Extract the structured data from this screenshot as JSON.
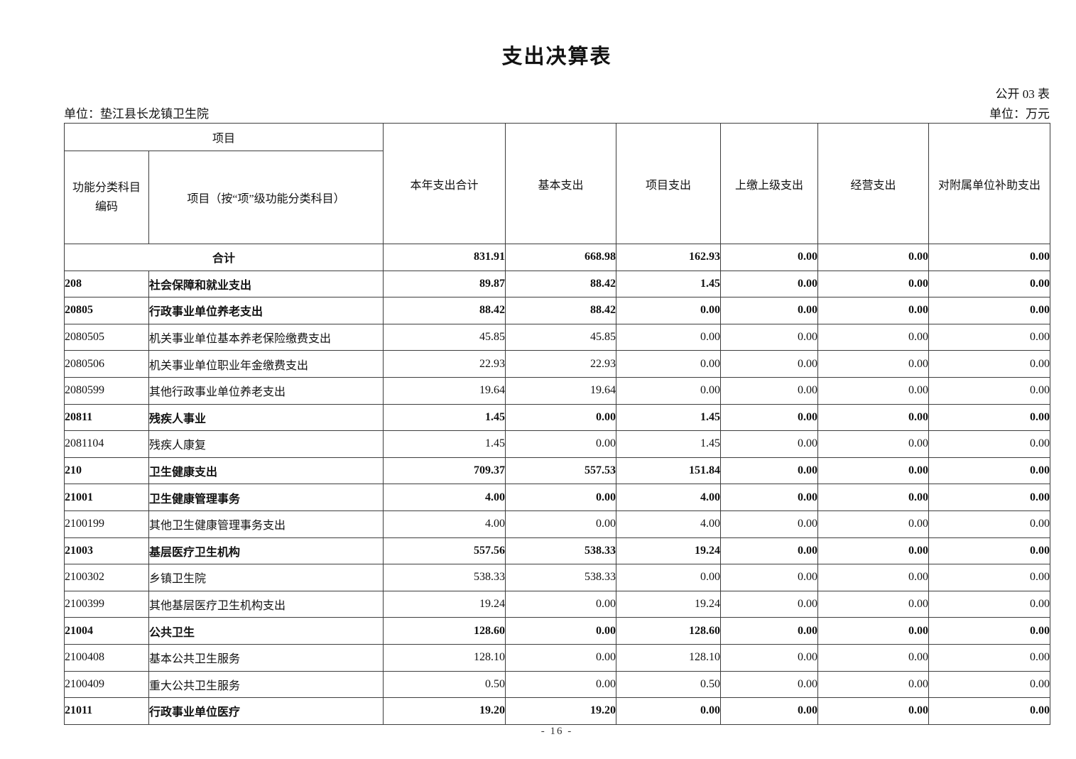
{
  "page": {
    "title": "支出决算表",
    "table_code": "公开 03 表",
    "unit_label": "单位：垫江县长龙镇卫生院",
    "currency_label": "单位：万元",
    "page_number": "- 16 -"
  },
  "table": {
    "header": {
      "project_group": "项目",
      "col_code": "功能分类科目\n编码",
      "col_name": "项目（按“项”级功能分类科目）",
      "col_total": "本年支出合计",
      "col_basic": "基本支出",
      "col_project": "项目支出",
      "col_upper": "上缴上级支出",
      "col_operating": "经营支出",
      "col_subsidy": "对附属单位补助支出"
    },
    "rows": [
      {
        "type": "total",
        "code": "",
        "name": "合计",
        "bold": true,
        "values": [
          "831.91",
          "668.98",
          "162.93",
          "0.00",
          "0.00",
          "0.00"
        ]
      },
      {
        "code": "208",
        "name": "社会保障和就业支出",
        "bold": true,
        "values": [
          "89.87",
          "88.42",
          "1.45",
          "0.00",
          "0.00",
          "0.00"
        ]
      },
      {
        "code": "20805",
        "name": "行政事业单位养老支出",
        "bold": true,
        "values": [
          "88.42",
          "88.42",
          "0.00",
          "0.00",
          "0.00",
          "0.00"
        ]
      },
      {
        "code": "2080505",
        "name": "机关事业单位基本养老保险缴费支出",
        "bold": false,
        "values": [
          "45.85",
          "45.85",
          "0.00",
          "0.00",
          "0.00",
          "0.00"
        ]
      },
      {
        "code": "2080506",
        "name": "机关事业单位职业年金缴费支出",
        "bold": false,
        "values": [
          "22.93",
          "22.93",
          "0.00",
          "0.00",
          "0.00",
          "0.00"
        ]
      },
      {
        "code": "2080599",
        "name": "其他行政事业单位养老支出",
        "bold": false,
        "values": [
          "19.64",
          "19.64",
          "0.00",
          "0.00",
          "0.00",
          "0.00"
        ]
      },
      {
        "code": "20811",
        "name": "残疾人事业",
        "bold": true,
        "values": [
          "1.45",
          "0.00",
          "1.45",
          "0.00",
          "0.00",
          "0.00"
        ]
      },
      {
        "code": "2081104",
        "name": "残疾人康复",
        "bold": false,
        "values": [
          "1.45",
          "0.00",
          "1.45",
          "0.00",
          "0.00",
          "0.00"
        ]
      },
      {
        "code": "210",
        "name": "卫生健康支出",
        "bold": true,
        "values": [
          "709.37",
          "557.53",
          "151.84",
          "0.00",
          "0.00",
          "0.00"
        ]
      },
      {
        "code": "21001",
        "name": "卫生健康管理事务",
        "bold": true,
        "values": [
          "4.00",
          "0.00",
          "4.00",
          "0.00",
          "0.00",
          "0.00"
        ]
      },
      {
        "code": "2100199",
        "name": "其他卫生健康管理事务支出",
        "bold": false,
        "values": [
          "4.00",
          "0.00",
          "4.00",
          "0.00",
          "0.00",
          "0.00"
        ]
      },
      {
        "code": "21003",
        "name": "基层医疗卫生机构",
        "bold": true,
        "values": [
          "557.56",
          "538.33",
          "19.24",
          "0.00",
          "0.00",
          "0.00"
        ]
      },
      {
        "code": "2100302",
        "name": "乡镇卫生院",
        "bold": false,
        "values": [
          "538.33",
          "538.33",
          "0.00",
          "0.00",
          "0.00",
          "0.00"
        ]
      },
      {
        "code": "2100399",
        "name": "其他基层医疗卫生机构支出",
        "bold": false,
        "values": [
          "19.24",
          "0.00",
          "19.24",
          "0.00",
          "0.00",
          "0.00"
        ]
      },
      {
        "code": "21004",
        "name": "公共卫生",
        "bold": true,
        "values": [
          "128.60",
          "0.00",
          "128.60",
          "0.00",
          "0.00",
          "0.00"
        ]
      },
      {
        "code": "2100408",
        "name": "基本公共卫生服务",
        "bold": false,
        "values": [
          "128.10",
          "0.00",
          "128.10",
          "0.00",
          "0.00",
          "0.00"
        ]
      },
      {
        "code": "2100409",
        "name": "重大公共卫生服务",
        "bold": false,
        "values": [
          "0.50",
          "0.00",
          "0.50",
          "0.00",
          "0.00",
          "0.00"
        ]
      },
      {
        "code": "21011",
        "name": "行政事业单位医疗",
        "bold": true,
        "values": [
          "19.20",
          "19.20",
          "0.00",
          "0.00",
          "0.00",
          "0.00"
        ]
      }
    ]
  }
}
